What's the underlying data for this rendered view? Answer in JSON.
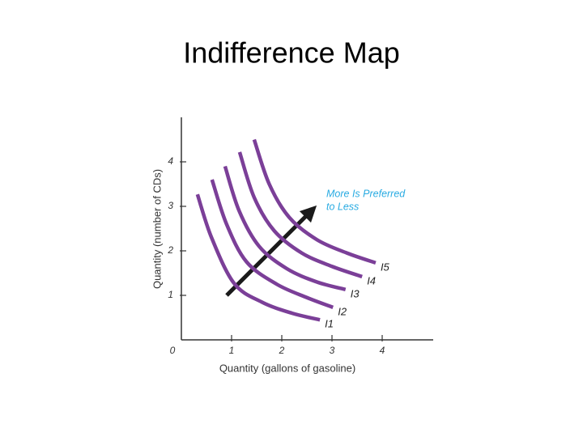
{
  "chart_data": {
    "type": "line",
    "title": "Indifference Map",
    "x_label": "Quantity (gallons of gasoline)",
    "y_label": "Quantity (number of CDs)",
    "annotation": [
      "More Is Preferred",
      "to Less"
    ],
    "annotation_color": "#29abe2",
    "xlim": [
      0,
      5
    ],
    "ylim": [
      0,
      5
    ],
    "xticks": [
      0,
      1,
      2,
      3,
      4
    ],
    "yticks": [
      1,
      2,
      3,
      4
    ],
    "series": [
      {
        "name": "I1",
        "color": "#7b3f98",
        "x": [
          0.32,
          0.6,
          1.05,
          1.6,
          2.2,
          2.76
        ],
        "values": [
          3.27,
          2.3,
          1.27,
          0.85,
          0.6,
          0.45
        ]
      },
      {
        "name": "I2",
        "color": "#7b3f98",
        "x": [
          0.61,
          0.9,
          1.3,
          1.9,
          2.5,
          3.02
        ],
        "values": [
          3.6,
          2.6,
          1.75,
          1.25,
          0.95,
          0.73
        ]
      },
      {
        "name": "I3",
        "color": "#7b3f98",
        "x": [
          0.87,
          1.15,
          1.55,
          2.1,
          2.7,
          3.27
        ],
        "values": [
          3.9,
          2.9,
          2.1,
          1.6,
          1.3,
          1.13
        ]
      },
      {
        "name": "I4",
        "color": "#7b3f98",
        "x": [
          1.16,
          1.45,
          1.85,
          2.4,
          3.0,
          3.6
        ],
        "values": [
          4.22,
          3.2,
          2.45,
          1.95,
          1.65,
          1.42
        ]
      },
      {
        "name": "I5",
        "color": "#7b3f98",
        "x": [
          1.45,
          1.75,
          2.15,
          2.7,
          3.3,
          3.87
        ],
        "values": [
          4.5,
          3.5,
          2.75,
          2.25,
          1.95,
          1.73
        ]
      }
    ]
  }
}
